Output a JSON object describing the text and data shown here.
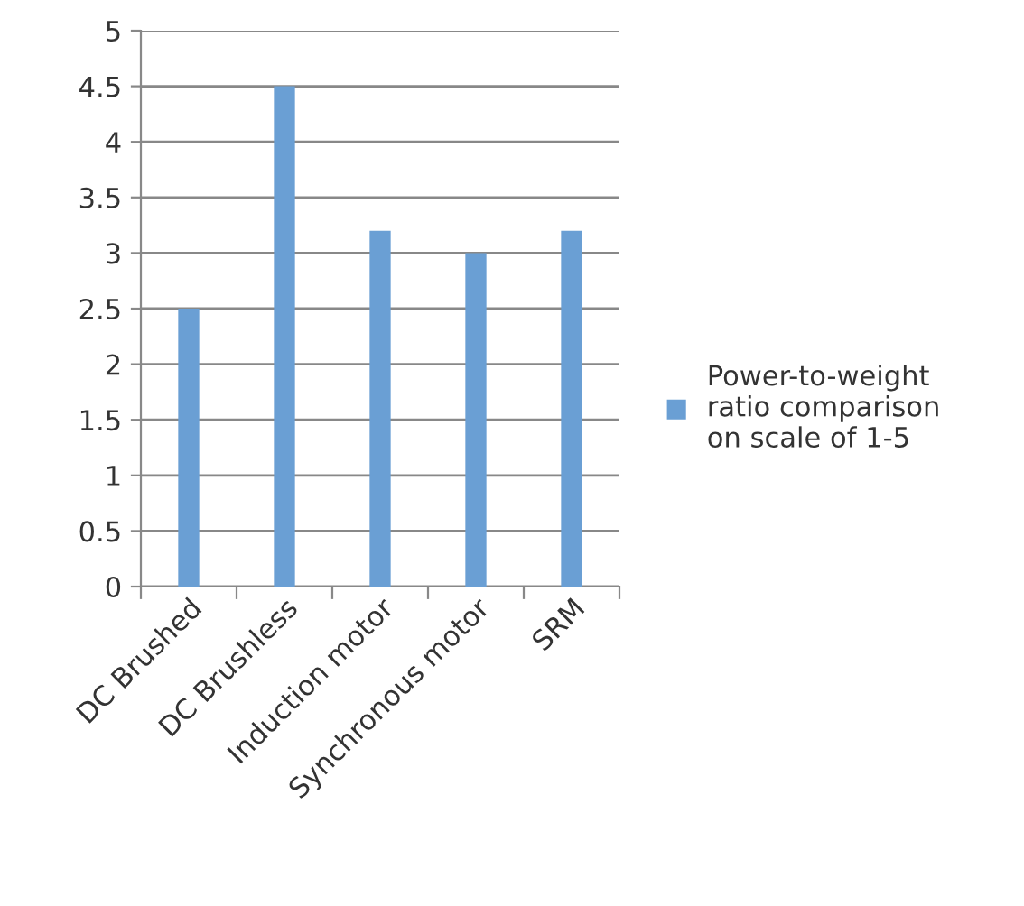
{
  "chart_data": {
    "type": "bar",
    "categories": [
      "DC Brushed",
      "DC Brushless",
      "Induction motor",
      "Synchronous motor",
      "SRM"
    ],
    "series": [
      {
        "name": "Power-to-weight ratio comparison on scale of 1-5",
        "color": "#6a9fd4",
        "values": [
          2.5,
          4.5,
          3.2,
          3.0,
          3.2
        ]
      }
    ],
    "ylim": [
      0,
      5
    ],
    "yticks": [
      0,
      0.5,
      1,
      1.5,
      2,
      2.5,
      3,
      3.5,
      4,
      4.5,
      5
    ],
    "grid": "y",
    "legend": "right"
  }
}
